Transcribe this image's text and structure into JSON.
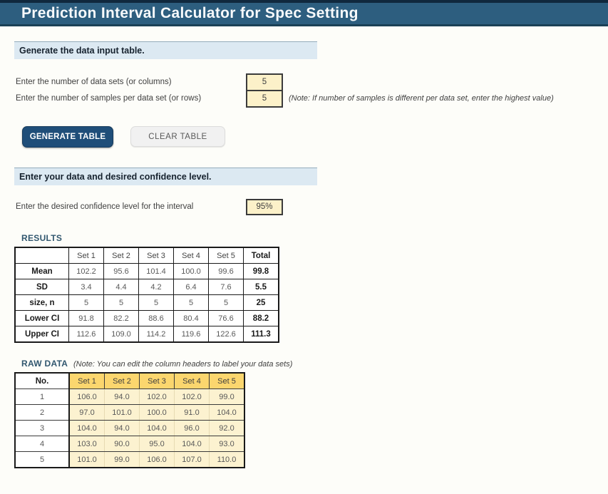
{
  "title": "Prediction Interval Calculator for Spec Setting",
  "colors": {
    "titlebar_bg": "#2d5e7f",
    "section_header_bg": "#dce9f2",
    "input_cell_bg": "#fcf1c9",
    "primary_button_bg": "#1f4e79",
    "secondary_button_bg": "#f1f1f1",
    "raw_header_bg": "#fbd66e",
    "raw_cell_bg": "#fcf2d0",
    "table_label_color": "#31576f"
  },
  "section1": {
    "header": "Generate the data input table.",
    "datasets_label": "Enter the number of data sets (or columns)",
    "datasets_value": "5",
    "samples_label": "Enter the number of samples per data set (or rows)",
    "samples_value": "5",
    "samples_note": "(Note: If number of samples is different per data set, enter the highest value)",
    "generate_button": "GENERATE TABLE",
    "clear_button": "CLEAR TABLE"
  },
  "section2": {
    "header": "Enter your data and desired confidence level.",
    "confidence_label": "Enter the desired confidence level for the interval",
    "confidence_value": "95%"
  },
  "results": {
    "label": "RESULTS",
    "columns": [
      "",
      "Set 1",
      "Set 2",
      "Set 3",
      "Set 4",
      "Set 5",
      "Total"
    ],
    "rows": [
      {
        "label": "Mean",
        "values": [
          "102.2",
          "95.6",
          "101.4",
          "100.0",
          "99.6"
        ],
        "total": "99.8"
      },
      {
        "label": "SD",
        "values": [
          "3.4",
          "4.4",
          "4.2",
          "6.4",
          "7.6"
        ],
        "total": "5.5"
      },
      {
        "label": "size, n",
        "values": [
          "5",
          "5",
          "5",
          "5",
          "5"
        ],
        "total": "25"
      },
      {
        "label": "Lower CI",
        "values": [
          "91.8",
          "82.2",
          "88.6",
          "80.4",
          "76.6"
        ],
        "total": "88.2"
      },
      {
        "label": "Upper CI",
        "values": [
          "112.6",
          "109.0",
          "114.2",
          "119.6",
          "122.6"
        ],
        "total": "111.3"
      }
    ]
  },
  "raw_data": {
    "label": "RAW DATA",
    "note": "(Note: You can edit the column headers to label your data sets)",
    "columns": [
      "No.",
      "Set 1",
      "Set 2",
      "Set 3",
      "Set 4",
      "Set 5"
    ],
    "rows": [
      {
        "no": "1",
        "values": [
          "106.0",
          "94.0",
          "102.0",
          "102.0",
          "99.0"
        ]
      },
      {
        "no": "2",
        "values": [
          "97.0",
          "101.0",
          "100.0",
          "91.0",
          "104.0"
        ]
      },
      {
        "no": "3",
        "values": [
          "104.0",
          "94.0",
          "104.0",
          "96.0",
          "92.0"
        ]
      },
      {
        "no": "4",
        "values": [
          "103.0",
          "90.0",
          "95.0",
          "104.0",
          "93.0"
        ]
      },
      {
        "no": "5",
        "values": [
          "101.0",
          "99.0",
          "106.0",
          "107.0",
          "110.0"
        ]
      }
    ]
  }
}
